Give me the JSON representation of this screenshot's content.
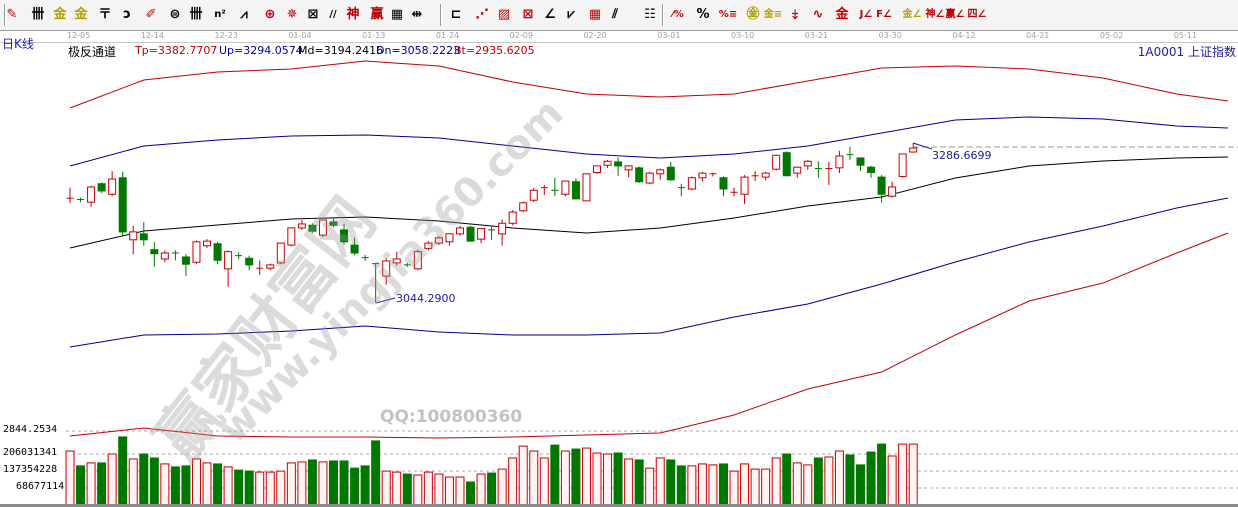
{
  "toolbar": {
    "icons": [
      {
        "name": "pen-draw-icon",
        "glyph": "✎",
        "color": "#c00000"
      },
      {
        "name": "parallel-lines-icon",
        "glyph": "卌",
        "color": "#000000"
      },
      {
        "name": "gold-ratio-icon",
        "glyph": "金",
        "color": "#b0a000"
      },
      {
        "name": "gold-ratio-2-icon",
        "glyph": "金",
        "color": "#b0a000"
      },
      {
        "name": "fork-icon",
        "glyph": "〒",
        "color": "#000000"
      },
      {
        "name": "spiral-icon",
        "glyph": "ↄ",
        "color": "#000000"
      },
      {
        "name": "marker-icon",
        "glyph": "✐",
        "color": "#c00000"
      },
      {
        "name": "circle-grid-icon",
        "glyph": "⊜",
        "color": "#000000"
      },
      {
        "name": "cycle-lines-icon",
        "glyph": "卌",
        "color": "#000000"
      },
      {
        "name": "fibonacci-square-icon",
        "glyph": "n²",
        "color": "#000000"
      },
      {
        "name": "speed-lines-icon",
        "glyph": "⩘",
        "color": "#000000"
      },
      {
        "name": "target-icon",
        "glyph": "⊕",
        "color": "#c00000"
      },
      {
        "name": "compass-icon",
        "glyph": "✵",
        "color": "#c00000"
      },
      {
        "name": "square-target-icon",
        "glyph": "⊠",
        "color": "#000000"
      },
      {
        "name": "gann-lines-icon",
        "glyph": "//",
        "color": "#000000"
      },
      {
        "name": "god-icon",
        "glyph": "神",
        "color": "#c00000"
      },
      {
        "name": "win-icon",
        "glyph": "赢",
        "color": "#c00000"
      },
      {
        "name": "calendar-grid-icon",
        "glyph": "▦",
        "color": "#000000"
      },
      {
        "name": "measure-icon",
        "glyph": "⇹",
        "color": "#000000"
      },
      {
        "name": "box-icon",
        "glyph": "⊏",
        "color": "#000000"
      },
      {
        "name": "fan-lines-icon",
        "glyph": "⋰",
        "color": "#c00000"
      },
      {
        "name": "hatched-box-icon",
        "glyph": "▨",
        "color": "#c00000"
      },
      {
        "name": "gann-box-icon",
        "glyph": "⊠",
        "color": "#c00000"
      },
      {
        "name": "angle-icon",
        "glyph": "∠",
        "color": "#000000"
      },
      {
        "name": "wave-icon",
        "glyph": "⩗",
        "color": "#000000"
      },
      {
        "name": "grid-icon",
        "glyph": "▦",
        "color": "#c00000"
      },
      {
        "name": "channel-icon",
        "glyph": "⫽",
        "color": "#000000"
      },
      {
        "name": "fibonacci-table-icon",
        "glyph": "☷",
        "color": "#000000"
      },
      {
        "name": "percent-line-icon",
        "glyph": "⁄%",
        "color": "#c00000"
      },
      {
        "name": "percent-icon",
        "glyph": "%",
        "color": "#000000"
      },
      {
        "name": "percent-lines-icon",
        "glyph": "%≡",
        "color": "#c00000"
      },
      {
        "name": "gold-circle-icon",
        "glyph": "㊎",
        "color": "#b0a000"
      },
      {
        "name": "gold-lines-icon",
        "glyph": "金≡",
        "color": "#b0a000"
      },
      {
        "name": "drill-icon",
        "glyph": "⤈",
        "color": "#c00000"
      },
      {
        "name": "sine-wave-icon",
        "glyph": "∿",
        "color": "#c00000"
      },
      {
        "name": "gold-bar-icon",
        "glyph": "金",
        "color": "#c00000"
      },
      {
        "name": "angle-j-icon",
        "glyph": "J∠",
        "color": "#c00000"
      },
      {
        "name": "angle-f-icon",
        "glyph": "F∠",
        "color": "#c00000"
      },
      {
        "name": "angle-gold-icon",
        "glyph": "金∠",
        "color": "#b0a000"
      },
      {
        "name": "angle-god-icon",
        "glyph": "神∠",
        "color": "#c00000"
      },
      {
        "name": "angle-win-icon",
        "glyph": "赢∠",
        "color": "#c00000"
      },
      {
        "name": "angle-four-icon",
        "glyph": "四∠",
        "color": "#c00000"
      }
    ]
  },
  "header": {
    "period": "日K线",
    "indicator_name": "极反通道",
    "indicator_values": [
      {
        "text": "Tp=3382.7707",
        "color": "#c00000"
      },
      {
        "text": "Up=3294.0574",
        "color": "#00008b"
      },
      {
        "text": "Md=3194.2416",
        "color": "#000000"
      },
      {
        "text": "Dn=3058.2223",
        "color": "#00008b"
      },
      {
        "text": "Bt=2935.6205",
        "color": "#c00000"
      }
    ],
    "symbol": "1A0001  上证指数"
  },
  "watermarks": {
    "site_name": "赢家财富网",
    "site_url": "www.yingjia360.com",
    "qq": "QQ:100800360"
  },
  "colors": {
    "up": "#c80000",
    "down": "#007800",
    "up_fill": "#fff3f3",
    "tp_bt": "#c00000",
    "up_dn": "#00008b",
    "md": "#000000"
  },
  "chart_data": {
    "type": "candlestick",
    "x_ticks": [
      "12-05",
      "12-14",
      "12-23",
      "01-04",
      "01-13",
      "01-24",
      "02-09",
      "02-20",
      "03-01",
      "03-10",
      "03-21",
      "03-30",
      "04-12",
      "04-21",
      "05-02",
      "05-11"
    ],
    "candles_ohlc": [
      [
        3203,
        3219,
        3196,
        3203
      ],
      [
        3201,
        3204,
        3197,
        3200
      ],
      [
        3197,
        3222,
        3190,
        3220
      ],
      [
        3225,
        3227,
        3211,
        3214
      ],
      [
        3209,
        3244,
        3206,
        3232
      ],
      [
        3234,
        3243,
        3146,
        3152
      ],
      [
        3140,
        3161,
        3118,
        3152
      ],
      [
        3149,
        3167,
        3131,
        3140
      ],
      [
        3125,
        3137,
        3099,
        3119
      ],
      [
        3111,
        3124,
        3106,
        3120
      ],
      [
        3120,
        3124,
        3109,
        3119
      ],
      [
        3114,
        3118,
        3085,
        3103
      ],
      [
        3106,
        3139,
        3103,
        3137
      ],
      [
        3131,
        3141,
        3128,
        3138
      ],
      [
        3134,
        3137,
        3103,
        3109
      ],
      [
        3096,
        3124,
        3069,
        3122
      ],
      [
        3116,
        3121,
        3111,
        3115
      ],
      [
        3112,
        3116,
        3094,
        3102
      ],
      [
        3096,
        3109,
        3087,
        3097
      ],
      [
        3097,
        3104,
        3094,
        3102
      ],
      [
        3105,
        3136,
        3103,
        3135
      ],
      [
        3132,
        3159,
        3130,
        3158
      ],
      [
        3158,
        3170,
        3155,
        3164
      ],
      [
        3162,
        3165,
        3150,
        3153
      ],
      [
        3147,
        3171,
        3144,
        3170
      ],
      [
        3167,
        3172,
        3159,
        3162
      ],
      [
        3155,
        3164,
        3133,
        3137
      ],
      [
        3132,
        3143,
        3117,
        3120
      ],
      [
        3113,
        3117,
        3108,
        3112
      ],
      [
        3104,
        3105,
        3044.29,
        3103
      ],
      [
        3085,
        3112,
        3072,
        3108
      ],
      [
        3105,
        3122,
        3101,
        3111
      ],
      [
        3102,
        3105,
        3099,
        3101
      ],
      [
        3096,
        3125,
        3094,
        3122
      ],
      [
        3127,
        3138,
        3124,
        3135
      ],
      [
        3135,
        3145,
        3132,
        3143
      ],
      [
        3137,
        3150,
        3131,
        3149
      ],
      [
        3149,
        3161,
        3146,
        3158
      ],
      [
        3159,
        3161,
        3137,
        3138
      ],
      [
        3141,
        3158,
        3135,
        3157
      ],
      [
        3155,
        3161,
        3140,
        3154
      ],
      [
        3149,
        3171,
        3131,
        3165
      ],
      [
        3165,
        3185,
        3162,
        3182
      ],
      [
        3184,
        3198,
        3182,
        3196
      ],
      [
        3200,
        3219,
        3197,
        3215
      ],
      [
        3218,
        3223,
        3208,
        3219
      ],
      [
        3215,
        3234,
        3206,
        3214
      ],
      [
        3209,
        3229,
        3206,
        3229
      ],
      [
        3228,
        3233,
        3202,
        3202
      ],
      [
        3199,
        3240,
        3199,
        3240
      ],
      [
        3242,
        3252,
        3240,
        3252
      ],
      [
        3253,
        3261,
        3249,
        3259
      ],
      [
        3258,
        3265,
        3237,
        3252
      ],
      [
        3246,
        3253,
        3235,
        3252
      ],
      [
        3249,
        3251,
        3226,
        3228
      ],
      [
        3226,
        3243,
        3224,
        3241
      ],
      [
        3240,
        3248,
        3231,
        3246
      ],
      [
        3250,
        3258,
        3229,
        3231
      ],
      [
        3219,
        3225,
        3206,
        3218
      ],
      [
        3217,
        3236,
        3215,
        3234
      ],
      [
        3234,
        3243,
        3228,
        3241
      ],
      [
        3239,
        3242,
        3236,
        3240
      ],
      [
        3234,
        3236,
        3206,
        3217
      ],
      [
        3212,
        3219,
        3206,
        3212
      ],
      [
        3209,
        3238,
        3194,
        3235
      ],
      [
        3237,
        3244,
        3229,
        3237
      ],
      [
        3235,
        3243,
        3230,
        3241
      ],
      [
        3247,
        3269,
        3245,
        3268
      ],
      [
        3272,
        3274,
        3237,
        3237
      ],
      [
        3241,
        3251,
        3234,
        3250
      ],
      [
        3252,
        3261,
        3246,
        3259
      ],
      [
        3248,
        3259,
        3234,
        3247
      ],
      [
        3247,
        3258,
        3223,
        3248
      ],
      [
        3249,
        3275,
        3241,
        3267
      ],
      [
        3269,
        3281,
        3261,
        3268
      ],
      [
        3264,
        3265,
        3244,
        3253
      ],
      [
        3250,
        3252,
        3234,
        3242
      ],
      [
        3235,
        3238,
        3196,
        3209
      ],
      [
        3206,
        3228,
        3204,
        3220
      ],
      [
        3236,
        3270,
        3234,
        3270
      ],
      [
        3273,
        3286.67,
        3272,
        3279
      ]
    ],
    "volumes": [
      218000000,
      158000000,
      170000000,
      170000000,
      206000000,
      275000000,
      186000000,
      206000000,
      190000000,
      166000000,
      154000000,
      158000000,
      186000000,
      170000000,
      166000000,
      154000000,
      141000000,
      137000000,
      133000000,
      133000000,
      137000000,
      170000000,
      174000000,
      182000000,
      174000000,
      178000000,
      178000000,
      149000000,
      158000000,
      259000000,
      137000000,
      133000000,
      125000000,
      121000000,
      133000000,
      125000000,
      113000000,
      113000000,
      93000000,
      125000000,
      129000000,
      145000000,
      190000000,
      238000000,
      218000000,
      190000000,
      242000000,
      218000000,
      226000000,
      230000000,
      210000000,
      206000000,
      210000000,
      186000000,
      182000000,
      149000000,
      190000000,
      182000000,
      158000000,
      158000000,
      166000000,
      162000000,
      166000000,
      137000000,
      166000000,
      145000000,
      145000000,
      190000000,
      206000000,
      170000000,
      162000000,
      190000000,
      194000000,
      218000000,
      202000000,
      162000000,
      214000000,
      246000000,
      198000000,
      246000000,
      246000000
    ],
    "channel_lines": [
      {
        "name": "Tp",
        "color": "#c00000",
        "values_at_ticks": [
          3339.7,
          3382.1,
          3394.2,
          3398.8,
          3410.9,
          3403.3,
          3379.1,
          3360.9,
          3356.3,
          3360.9,
          3380.6,
          3400.3,
          3403.3,
          3398.8,
          3385.1,
          3360.9
        ],
        "end_value": 3350.3
      },
      {
        "name": "Up",
        "color": "#00008b",
        "values_at_ticks": [
          3251.8,
          3282.1,
          3291.2,
          3297.3,
          3298.8,
          3294.2,
          3282.1,
          3270.0,
          3263.9,
          3270.0,
          3282.1,
          3301.8,
          3321.5,
          3326.1,
          3323.0,
          3312.4
        ],
        "end_value": 3309.4
      },
      {
        "name": "Md",
        "color": "#000000",
        "values_at_ticks": [
          3127.6,
          3153.3,
          3162.4,
          3171.5,
          3174.5,
          3168.5,
          3157.9,
          3150.3,
          3157.9,
          3173.0,
          3191.2,
          3204.8,
          3233.6,
          3251.8,
          3259.4,
          3263.9
        ],
        "end_value": 3265.4
      },
      {
        "name": "Dn",
        "color": "#00008b",
        "values_at_ticks": [
          2977.6,
          2995.8,
          2997.3,
          3001.8,
          3009.4,
          3000.3,
          2995.8,
          2995.8,
          2998.8,
          3023.1,
          3042.7,
          3073.0,
          3106.4,
          3136.7,
          3160.9,
          3188.2
        ],
        "end_value": 3203.3
      },
      {
        "name": "Bt",
        "color": "#c00000",
        "values_at_ticks": [
          2842.8,
          2854.9,
          2842.8,
          2841.2,
          2841.2,
          2839.7,
          2841.2,
          2844.3,
          2847.3,
          2874.6,
          2914.0,
          2939.7,
          2995.8,
          3047.3,
          3074.5,
          3120.0
        ],
        "end_value": 3150.3
      }
    ],
    "annotations": {
      "low_label": "3044.2900",
      "high_label": "3286.6699"
    },
    "price_level_label": "2844.2534",
    "volume_axis_labels": [
      "206031341",
      "137354228",
      "68677114"
    ],
    "volume_axis_values": [
      206031341,
      137354228,
      68677114
    ]
  }
}
